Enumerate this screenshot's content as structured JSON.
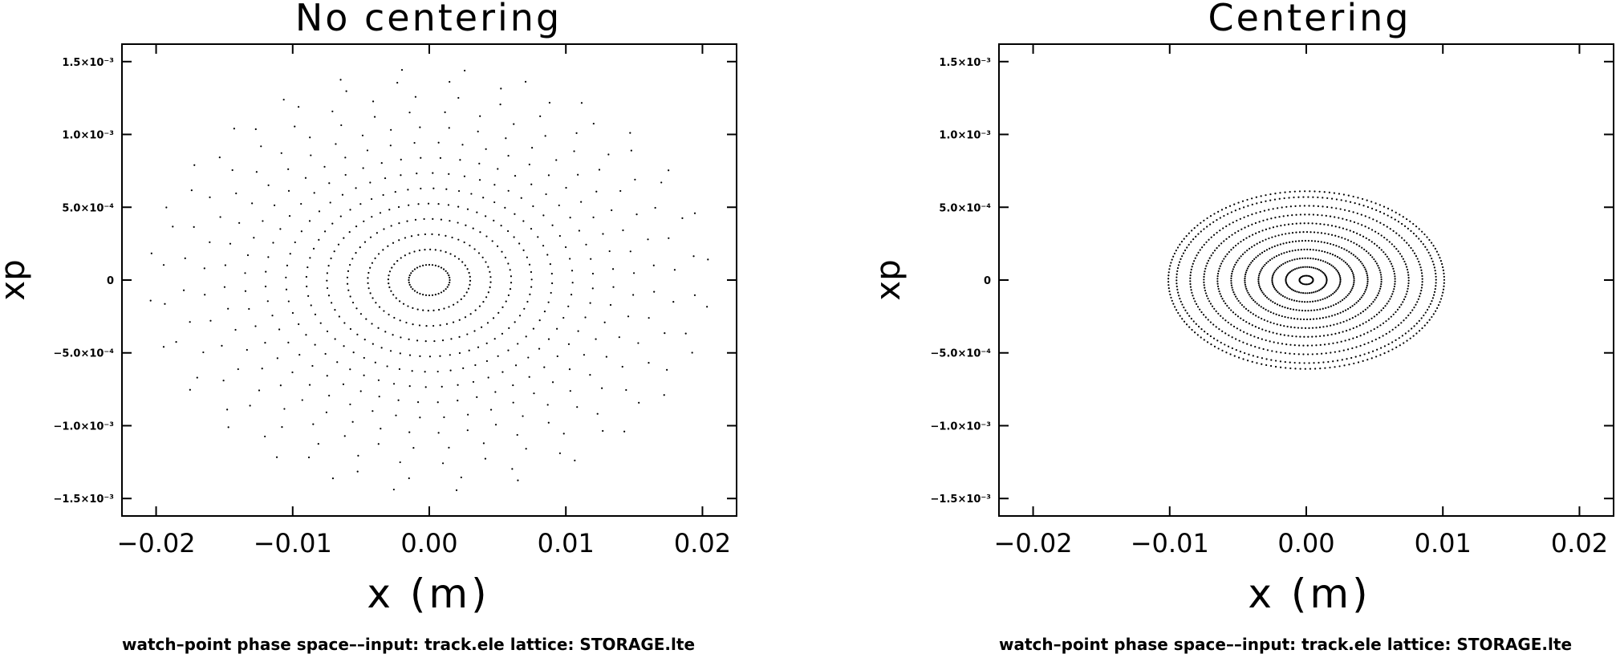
{
  "chart_data": [
    {
      "type": "scatter",
      "title": "No centering",
      "xlabel": "x (m)",
      "ylabel": "xp",
      "xlim": [
        -0.0225,
        0.0225
      ],
      "ylim": [
        -0.00162,
        0.00162
      ],
      "xticks": [
        -0.02,
        -0.01,
        0.0,
        0.01,
        0.02
      ],
      "xtick_labels": [
        "−0.02",
        "−0.01",
        "0.00",
        "0.01",
        "0.02"
      ],
      "yticks": [
        0.0015,
        0.001,
        0.0005,
        0,
        -0.0005,
        -0.001,
        -0.0015
      ],
      "ytick_labels": [
        "1.5×10⁻³",
        "1.0×10⁻³",
        "5.0×10⁻⁴",
        "0",
        "−5.0×10⁻⁴",
        "−1.0×10⁻³",
        "−1.5×10⁻³"
      ],
      "footer": "watch–point phase space––input: track.ele   lattice: STORAGE.lte",
      "grid": false,
      "series": [
        {
          "x_semi_axes": [
            0.0015,
            0.003,
            0.0045,
            0.006,
            0.0075,
            0.009,
            0.0105,
            0.012,
            0.0135,
            0.015,
            0.0165,
            0.018,
            0.0195,
            0.0205
          ],
          "xp_semi_axes": [
            0.000105,
            0.00021,
            0.000315,
            0.00042,
            0.000525,
            0.00063,
            0.000735,
            0.00084,
            0.000945,
            0.00105,
            0.001155,
            0.00126,
            0.001365,
            0.00145
          ],
          "points_per_ellipse": [
            40,
            48,
            56,
            60,
            64,
            60,
            56,
            52,
            48,
            44,
            40,
            36,
            32,
            28
          ]
        }
      ]
    },
    {
      "type": "scatter",
      "title": "Centering",
      "xlabel": "x (m)",
      "ylabel": "xp",
      "xlim": [
        -0.0225,
        0.0225
      ],
      "ylim": [
        -0.00162,
        0.00162
      ],
      "xticks": [
        -0.02,
        -0.01,
        0.0,
        0.01,
        0.02
      ],
      "xtick_labels": [
        "−0.02",
        "−0.01",
        "0.00",
        "0.01",
        "0.02"
      ],
      "yticks": [
        0.0015,
        0.001,
        0.0005,
        0,
        -0.0005,
        -0.001,
        -0.0015
      ],
      "ytick_labels": [
        "1.5×10⁻³",
        "1.0×10⁻³",
        "5.0×10⁻⁴",
        "0",
        "−5.0×10⁻⁴",
        "−1.0×10⁻³",
        "−1.5×10⁻³"
      ],
      "footer": "watch–point phase space––input: track.ele   lattice: STORAGE.lte",
      "grid": false,
      "series": [
        {
          "x_semi_axes": [
            0.0005,
            0.0015,
            0.0025,
            0.0035,
            0.0045,
            0.0055,
            0.0065,
            0.0075,
            0.0085,
            0.0095,
            0.0101
          ],
          "xp_semi_axes": [
            3e-05,
            9e-05,
            0.00015,
            0.00021,
            0.00027,
            0.00033,
            0.00039,
            0.00045,
            0.00051,
            0.00057,
            0.00061
          ],
          "points_per_ellipse": [
            30,
            60,
            80,
            100,
            120,
            130,
            140,
            150,
            160,
            170,
            175
          ]
        }
      ]
    }
  ]
}
